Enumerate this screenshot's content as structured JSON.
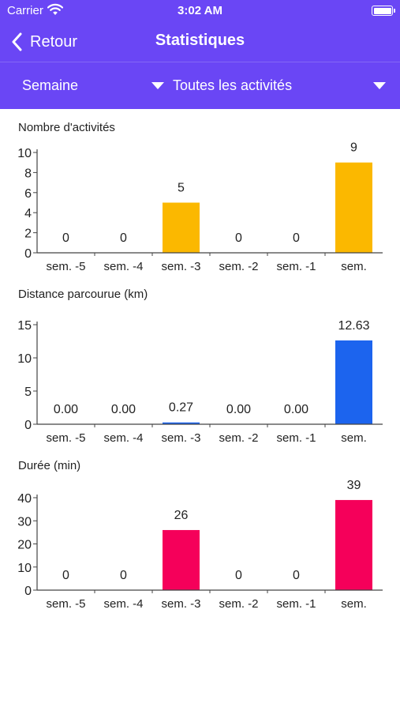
{
  "status_bar": {
    "carrier": "Carrier",
    "time": "3:02 AM"
  },
  "nav": {
    "back_label": "Retour",
    "title": "Statistiques"
  },
  "filters": {
    "period": "Semaine",
    "activity": "Toutes les activités"
  },
  "colors": {
    "header": "#6a46f5",
    "activities": "#fbb800",
    "distance": "#1c64ee",
    "duration": "#f5005a"
  },
  "chart_data": [
    {
      "type": "bar",
      "title": "Nombre d'activités",
      "categories": [
        "sem. -5",
        "sem. -4",
        "sem. -3",
        "sem. -2",
        "sem. -1",
        "sem."
      ],
      "values": [
        0,
        0,
        5,
        0,
        0,
        9
      ],
      "value_labels": [
        "0",
        "0",
        "5",
        "0",
        "0",
        "9"
      ],
      "yticks": [
        "0",
        "2",
        "4",
        "6",
        "8",
        "10"
      ],
      "ylim": [
        0,
        10
      ],
      "color": "#fbb800"
    },
    {
      "type": "bar",
      "title": "Distance parcourue (km)",
      "categories": [
        "sem. -5",
        "sem. -4",
        "sem. -3",
        "sem. -2",
        "sem. -1",
        "sem."
      ],
      "values": [
        0.0,
        0.0,
        0.27,
        0.0,
        0.0,
        12.63
      ],
      "value_labels": [
        "0.00",
        "0.00",
        "0.27",
        "0.00",
        "0.00",
        "12.63"
      ],
      "yticks": [
        "0",
        "5",
        "10",
        "15"
      ],
      "ylim": [
        0,
        15
      ],
      "color": "#1c64ee"
    },
    {
      "type": "bar",
      "title": "Durée (min)",
      "categories": [
        "sem. -5",
        "sem. -4",
        "sem. -3",
        "sem. -2",
        "sem. -1",
        "sem."
      ],
      "values": [
        0,
        0,
        26,
        0,
        0,
        39
      ],
      "value_labels": [
        "0",
        "0",
        "26",
        "0",
        "0",
        "39"
      ],
      "yticks": [
        "0",
        "10",
        "20",
        "30",
        "40"
      ],
      "ylim": [
        0,
        40
      ],
      "color": "#f5005a"
    }
  ]
}
